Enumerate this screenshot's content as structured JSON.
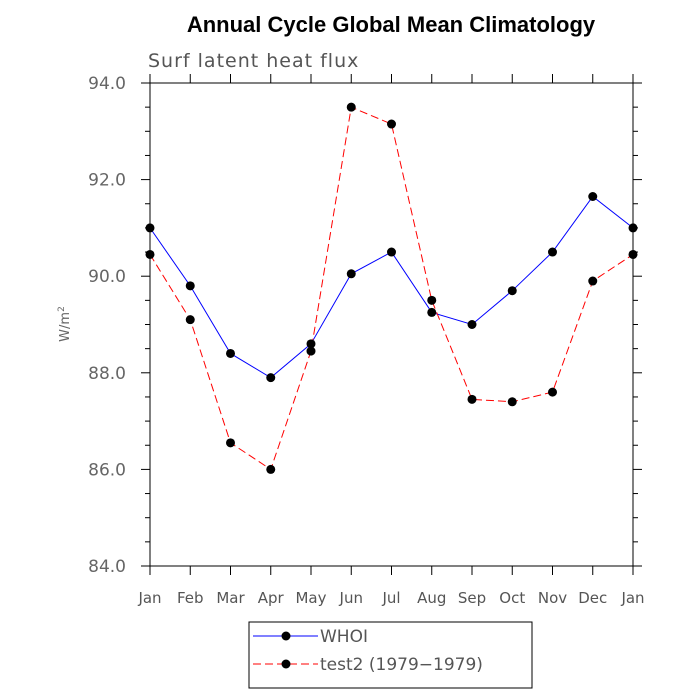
{
  "chart_data": {
    "type": "line",
    "title": "Annual Cycle Global Mean Climatology",
    "subtitle": "Surf latent heat flux",
    "ylabel": "W/m",
    "ylabel_sup": "2",
    "ylim": [
      84.0,
      94.0
    ],
    "yticks": [
      "84.0",
      "86.0",
      "88.0",
      "90.0",
      "92.0",
      "94.0"
    ],
    "ytick_values": [
      84,
      86,
      88,
      90,
      92,
      94
    ],
    "categories": [
      "Jan",
      "Feb",
      "Mar",
      "Apr",
      "May",
      "Jun",
      "Jul",
      "Aug",
      "Sep",
      "Oct",
      "Nov",
      "Dec",
      "Jan"
    ],
    "series": [
      {
        "name": "WHOI",
        "color": "#0000ff",
        "style": "solid",
        "values": [
          91.0,
          89.8,
          88.4,
          87.9,
          88.6,
          90.05,
          90.5,
          89.25,
          89.0,
          89.7,
          90.5,
          91.65,
          91.0
        ]
      },
      {
        "name": "test2 (1979−1979)",
        "color": "#ff0000",
        "style": "dashed",
        "values": [
          90.45,
          89.1,
          86.55,
          86.0,
          88.45,
          93.5,
          93.15,
          89.5,
          87.45,
          87.4,
          87.6,
          89.9,
          90.45
        ]
      }
    ],
    "legend_position": "bottom"
  }
}
